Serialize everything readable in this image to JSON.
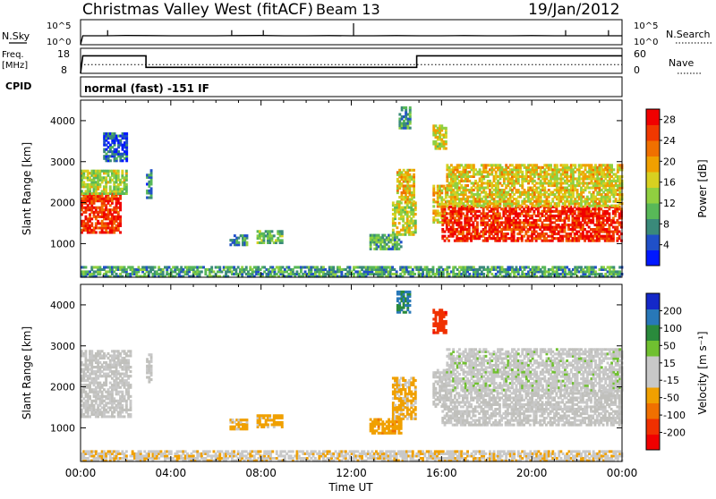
{
  "header": {
    "title": "Christmas Valley West (fitACF)",
    "beam": "Beam 13",
    "date": "19/Jan/2012"
  },
  "status_panels": {
    "nsky_label": "N.Sky",
    "nsky_ticks": [
      "10^5",
      "10^0"
    ],
    "nsearch_label": "N.Search",
    "freq_label_line1": "Freq.",
    "freq_label_line2": "[MHz]",
    "freq_ticks": [
      "18",
      "8"
    ],
    "nave_ticks": [
      "60",
      "0"
    ],
    "nave_label": "Nave",
    "cpid_label": "CPID",
    "cpid_text": "normal (fast) -151 IF"
  },
  "colors": {
    "power": [
      "#0018ff",
      "#2050c8",
      "#3a8a7a",
      "#58b858",
      "#90d040",
      "#d8d020",
      "#f0a000",
      "#f07000",
      "#f03800",
      "#f00000"
    ],
    "velocity": [
      "#1428c8",
      "#2878b8",
      "#2a8a3c",
      "#70c030",
      "#c8c8c8",
      "#c8c8c8",
      "#f0a000",
      "#f07000",
      "#f03000",
      "#f00000"
    ],
    "ground": "#c0c0bc"
  },
  "chart_data": [
    {
      "type": "line",
      "panel": "nsky-nsearch",
      "y_scale": "log",
      "ylim": [
        1,
        100000
      ],
      "x_range": [
        0,
        24
      ],
      "series": [
        {
          "label": "N.Sky",
          "x": [
            0,
            0.1,
            1,
            2,
            3,
            4,
            5,
            6,
            7,
            8,
            9,
            10,
            11,
            12,
            13,
            14,
            15,
            16,
            17,
            18,
            19,
            20,
            21,
            22,
            23,
            24
          ],
          "y": [
            1,
            60,
            60,
            70,
            65,
            60,
            60,
            60,
            65,
            70,
            60,
            60,
            65,
            60,
            60,
            65,
            60,
            60,
            65,
            60,
            60,
            65,
            60,
            60,
            60,
            60
          ]
        }
      ]
    },
    {
      "type": "line",
      "panel": "frequency",
      "ylabel": "Freq. [MHz]",
      "ylim": [
        8,
        18
      ],
      "x_range": [
        0,
        24
      ],
      "series": [
        {
          "label": "Frequency",
          "x": [
            0,
            0.1,
            2.9,
            2.9,
            14.9,
            14.9,
            24
          ],
          "y": [
            8,
            15,
            15,
            10.4,
            10.4,
            15,
            15
          ]
        },
        {
          "label": "Nave",
          "x": [
            0,
            24
          ],
          "y": [
            11.5,
            11.5
          ]
        }
      ]
    },
    {
      "type": "heatmap",
      "panel": "power",
      "xlabel": "",
      "ylabel": "Slant Range [km]",
      "x_range": [
        0,
        24
      ],
      "y_range": [
        180,
        4500
      ],
      "y_ticks": [
        1000,
        2000,
        3000,
        4000
      ],
      "colorbar": {
        "label": "Power [dB]",
        "ticks": [
          4,
          8,
          12,
          16,
          20,
          24,
          28
        ],
        "range": [
          0,
          30
        ]
      },
      "regions": [
        {
          "t": [
            0.0,
            1.8
          ],
          "r": [
            1250,
            2200
          ],
          "v": 26
        },
        {
          "t": [
            0.0,
            2.0
          ],
          "r": [
            2200,
            2800
          ],
          "v": 14
        },
        {
          "t": [
            1.0,
            2.0
          ],
          "r": [
            3000,
            3700
          ],
          "v": 5
        },
        {
          "t": [
            2.9,
            3.1
          ],
          "r": [
            2100,
            2800
          ],
          "v": 7
        },
        {
          "t": [
            6.6,
            7.4
          ],
          "r": [
            950,
            1200
          ],
          "v": 8
        },
        {
          "t": [
            7.8,
            8.9
          ],
          "r": [
            1000,
            1300
          ],
          "v": 12
        },
        {
          "t": [
            12.8,
            14.2
          ],
          "r": [
            850,
            1200
          ],
          "v": 10
        },
        {
          "t": [
            13.8,
            14.8
          ],
          "r": [
            1200,
            2000
          ],
          "v": 15
        },
        {
          "t": [
            14.0,
            14.8
          ],
          "r": [
            2000,
            2800
          ],
          "v": 18
        },
        {
          "t": [
            14.1,
            14.6
          ],
          "r": [
            3800,
            4300
          ],
          "v": 10
        },
        {
          "t": [
            15.6,
            16.2
          ],
          "r": [
            1500,
            2400
          ],
          "v": 18
        },
        {
          "t": [
            15.6,
            16.2
          ],
          "r": [
            3300,
            3900
          ],
          "v": 16
        },
        {
          "t": [
            16.0,
            24.0
          ],
          "r": [
            1050,
            1900
          ],
          "v": 27
        },
        {
          "t": [
            16.2,
            24.0
          ],
          "r": [
            1900,
            2900
          ],
          "v": 17
        },
        {
          "t": [
            0.0,
            24.0
          ],
          "r": [
            180,
            420
          ],
          "v": 9
        }
      ]
    },
    {
      "type": "heatmap",
      "panel": "velocity",
      "xlabel": "Time UT",
      "ylabel": "Slant Range [km]",
      "x_range": [
        0,
        24
      ],
      "x_ticks": [
        "00:00",
        "04:00",
        "08:00",
        "12:00",
        "16:00",
        "20:00",
        "00:00"
      ],
      "y_range": [
        180,
        4500
      ],
      "y_ticks": [
        1000,
        2000,
        3000,
        4000
      ],
      "colorbar": {
        "label": "Velocity [m s⁻¹]",
        "ticks": [
          "200",
          "100",
          "50",
          "15",
          "-15",
          "-50",
          "-100",
          "-200"
        ],
        "range": [
          -250,
          250
        ]
      },
      "regions": [
        {
          "t": [
            0.0,
            2.2
          ],
          "r": [
            1250,
            2900
          ],
          "v": 0
        },
        {
          "t": [
            2.9,
            3.1
          ],
          "r": [
            2100,
            2800
          ],
          "v": 0
        },
        {
          "t": [
            6.6,
            7.4
          ],
          "r": [
            950,
            1200
          ],
          "v": -60
        },
        {
          "t": [
            7.8,
            8.9
          ],
          "r": [
            1000,
            1300
          ],
          "v": -70
        },
        {
          "t": [
            12.8,
            14.2
          ],
          "r": [
            850,
            1200
          ],
          "v": -80
        },
        {
          "t": [
            13.8,
            14.8
          ],
          "r": [
            1200,
            2200
          ],
          "v": -60
        },
        {
          "t": [
            14.0,
            14.6
          ],
          "r": [
            3800,
            4300
          ],
          "v": 150
        },
        {
          "t": [
            15.6,
            16.2
          ],
          "r": [
            1500,
            2400
          ],
          "v": 0
        },
        {
          "t": [
            15.6,
            16.2
          ],
          "r": [
            3300,
            3900
          ],
          "v": -180
        },
        {
          "t": [
            16.0,
            24.0
          ],
          "r": [
            1050,
            1900
          ],
          "v": 0
        },
        {
          "t": [
            16.2,
            24.0
          ],
          "r": [
            1900,
            2900
          ],
          "v": 30
        },
        {
          "t": [
            0.0,
            24.0
          ],
          "r": [
            180,
            420
          ],
          "v": -40
        }
      ]
    }
  ]
}
